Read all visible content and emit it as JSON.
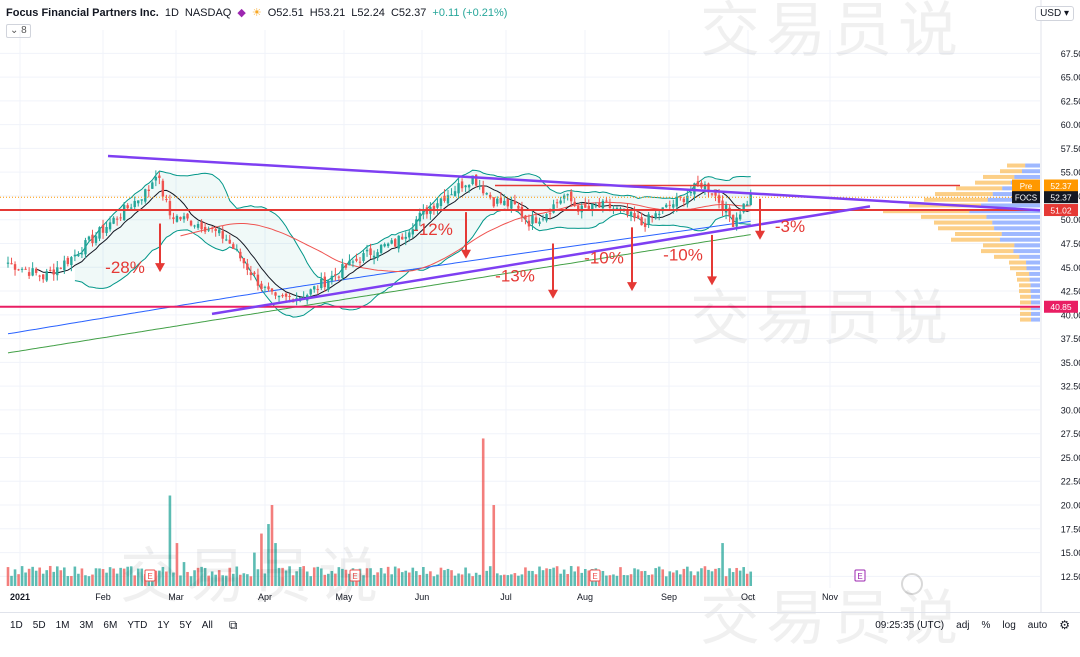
{
  "header": {
    "symbol": "Focus Financial Partners Inc.",
    "interval": "1D",
    "exchange": "NASDAQ",
    "open": "O52.51",
    "high": "H53.21",
    "low": "L52.24",
    "close": "C52.37",
    "change": "+0.11 (+0.21%)",
    "indicator_badge": "8",
    "currency": "USD"
  },
  "toolbar": {
    "ranges": [
      "1D",
      "5D",
      "1M",
      "3M",
      "6M",
      "YTD",
      "1Y",
      "5Y",
      "All"
    ],
    "time": "09:25:35 (UTC)",
    "opts": [
      "adj",
      "%",
      "log",
      "auto"
    ]
  },
  "watermark": "交易员说",
  "price_tags": {
    "pre_label": "Pre",
    "pre_value": "52.37",
    "ticker_label": "FOCS",
    "ticker_value": "52.37",
    "resistance_value": "51.02",
    "support_value": "40.85"
  },
  "chart_data": {
    "type": "candlestick",
    "yticks": [
      "67.50",
      "65.00",
      "62.50",
      "60.00",
      "57.50",
      "55.00",
      "52.50",
      "50.00",
      "47.50",
      "45.00",
      "42.50",
      "40.00",
      "37.50",
      "35.00",
      "32.50",
      "30.00",
      "27.50",
      "25.00",
      "22.50",
      "20.00",
      "17.50",
      "15.00",
      "12.50"
    ],
    "xticks": [
      "2021",
      "Feb",
      "Mar",
      "Apr",
      "May",
      "Jun",
      "Jul",
      "Aug",
      "Sep",
      "Oct",
      "Nov"
    ],
    "ylim": [
      11.8,
      68.9
    ],
    "horizontal_levels": [
      {
        "value": 51.02,
        "color": "#e53935"
      },
      {
        "value": 40.85,
        "color": "#e91e63"
      }
    ],
    "annotations": [
      "-28%",
      "-12%",
      "-13%",
      "-10%",
      "-10%",
      "-3%"
    ],
    "colors": {
      "up": "#26a69a",
      "down": "#ef5350",
      "trendline": "#7e3ff2",
      "arrow": "#e53935",
      "ema_red": "#ef5350",
      "sma_blue": "#2962ff",
      "sma_green": "#43a047",
      "bollinger": "#009688"
    }
  }
}
